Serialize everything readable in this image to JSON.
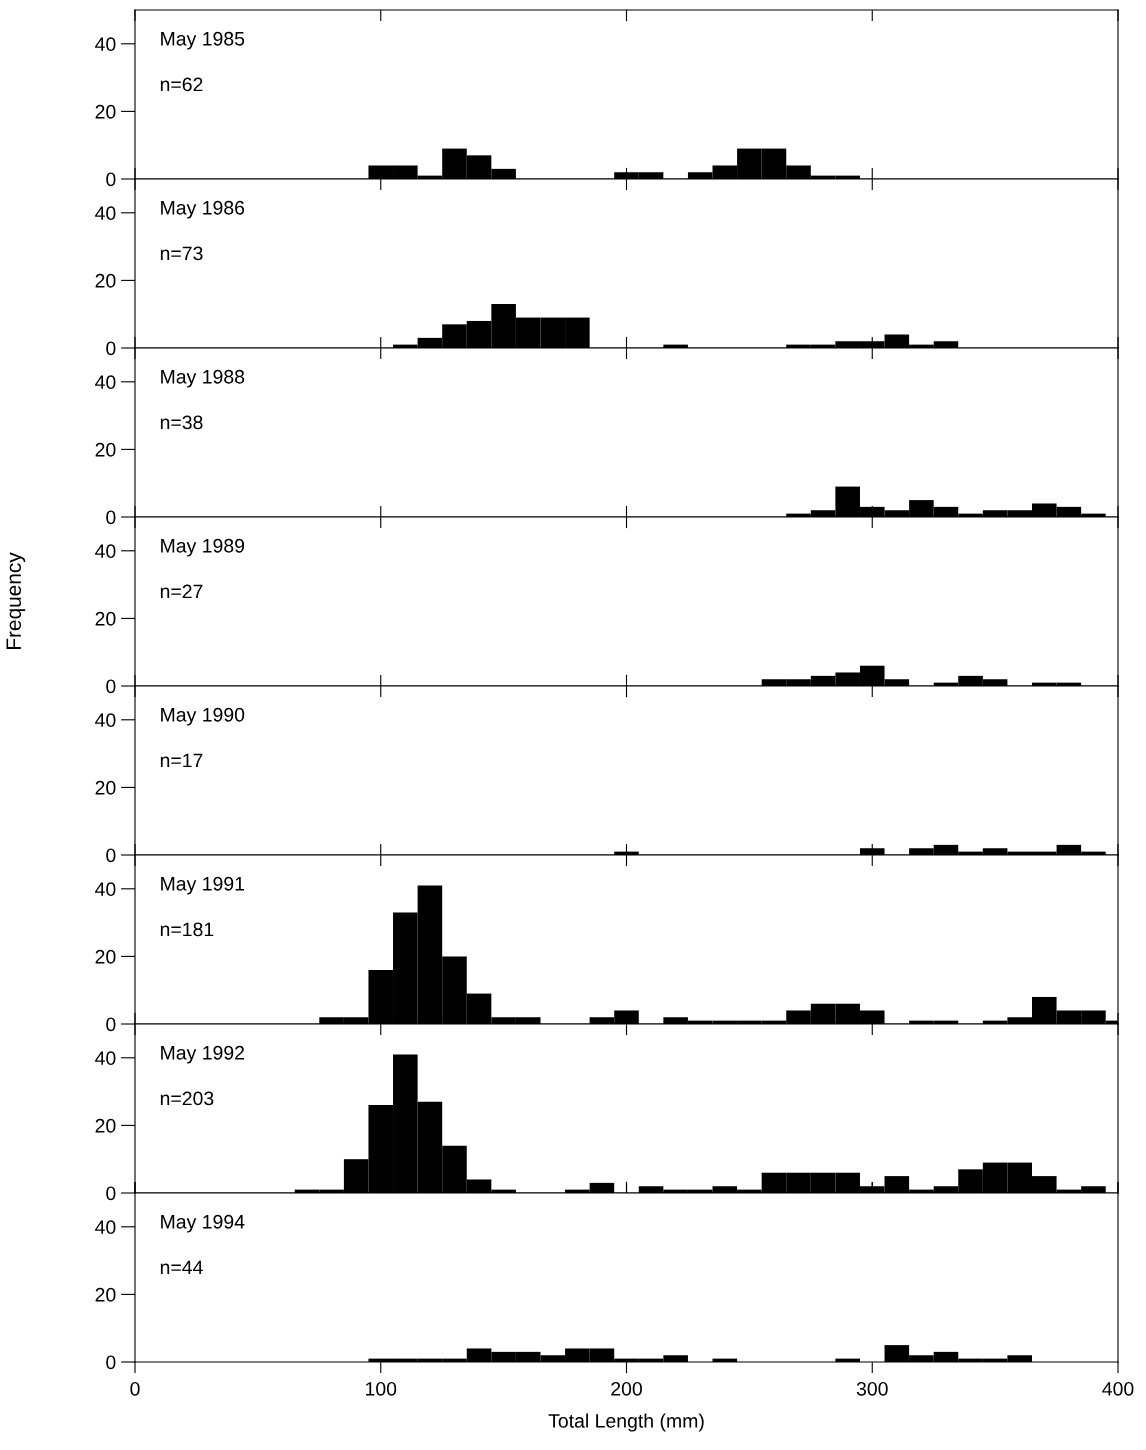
{
  "chart_data": [
    {
      "type": "bar",
      "annotations": [
        "May 1985",
        "n=62"
      ],
      "x": [
        100,
        110,
        120,
        130,
        140,
        150,
        200,
        210,
        230,
        240,
        250,
        260,
        270,
        280,
        290
      ],
      "values": [
        4,
        4,
        1,
        9,
        7,
        3,
        2,
        2,
        2,
        4,
        9,
        9,
        4,
        1,
        1
      ],
      "color": "#000000",
      "xlim": [
        0,
        400
      ],
      "xticks": [
        0,
        100,
        200,
        300,
        400
      ],
      "ylim": [
        0,
        50
      ],
      "yticks": [
        0,
        20,
        40
      ],
      "tick_labels": "y"
    },
    {
      "type": "bar",
      "annotations": [
        "May 1986",
        "n=73"
      ],
      "x": [
        110,
        120,
        130,
        140,
        150,
        160,
        170,
        180,
        220,
        270,
        280,
        290,
        300,
        310,
        320,
        330
      ],
      "values": [
        1,
        3,
        7,
        8,
        13,
        9,
        9,
        9,
        1,
        1,
        1,
        2,
        2,
        4,
        1,
        2
      ],
      "color": "#000000",
      "xlim": [
        0,
        400
      ],
      "xticks": [
        0,
        100,
        200,
        300,
        400
      ],
      "ylim": [
        0,
        50
      ],
      "yticks": [
        0,
        20,
        40
      ],
      "tick_labels": "y"
    },
    {
      "type": "bar",
      "annotations": [
        "May 1988",
        "n=38"
      ],
      "x": [
        270,
        280,
        290,
        300,
        310,
        320,
        330,
        340,
        350,
        360,
        370,
        380,
        390
      ],
      "values": [
        1,
        2,
        9,
        3,
        2,
        5,
        3,
        1,
        2,
        2,
        4,
        3,
        1
      ],
      "color": "#000000",
      "xlim": [
        0,
        400
      ],
      "xticks": [
        0,
        100,
        200,
        300,
        400
      ],
      "ylim": [
        0,
        50
      ],
      "yticks": [
        0,
        20,
        40
      ],
      "tick_labels": "y"
    },
    {
      "type": "bar",
      "annotations": [
        "May 1989",
        "n=27"
      ],
      "ylabel": "Frequency",
      "x": [
        260,
        270,
        280,
        290,
        300,
        310,
        330,
        340,
        350,
        370,
        380
      ],
      "values": [
        2,
        2,
        3,
        4,
        6,
        2,
        1,
        3,
        2,
        1,
        1
      ],
      "color": "#000000",
      "xlim": [
        0,
        400
      ],
      "xticks": [
        0,
        100,
        200,
        300,
        400
      ],
      "ylim": [
        0,
        50
      ],
      "yticks": [
        0,
        20,
        40
      ],
      "tick_labels": "y"
    },
    {
      "type": "bar",
      "annotations": [
        "May 1990",
        "n=17"
      ],
      "x": [
        200,
        300,
        320,
        330,
        340,
        350,
        360,
        370,
        380,
        390
      ],
      "values": [
        1,
        2,
        2,
        3,
        1,
        2,
        1,
        1,
        3,
        1
      ],
      "color": "#000000",
      "xlim": [
        0,
        400
      ],
      "xticks": [
        0,
        100,
        200,
        300,
        400
      ],
      "ylim": [
        0,
        50
      ],
      "yticks": [
        0,
        20,
        40
      ],
      "tick_labels": "y"
    },
    {
      "type": "bar",
      "annotations": [
        "May 1991",
        "n=181"
      ],
      "x": [
        80,
        90,
        100,
        110,
        120,
        130,
        140,
        150,
        160,
        190,
        200,
        220,
        230,
        240,
        250,
        260,
        270,
        280,
        290,
        300,
        320,
        330,
        350,
        360,
        370,
        380,
        390,
        400
      ],
      "values": [
        2,
        2,
        16,
        33,
        41,
        20,
        9,
        2,
        2,
        2,
        4,
        2,
        1,
        1,
        1,
        1,
        4,
        6,
        6,
        4,
        1,
        1,
        1,
        2,
        8,
        4,
        4,
        1
      ],
      "color": "#000000",
      "xlim": [
        0,
        400
      ],
      "xticks": [
        0,
        100,
        200,
        300,
        400
      ],
      "ylim": [
        0,
        50
      ],
      "yticks": [
        0,
        20,
        40
      ],
      "tick_labels": "y"
    },
    {
      "type": "bar",
      "annotations": [
        "May 1992",
        "n=203"
      ],
      "x": [
        70,
        80,
        90,
        100,
        110,
        120,
        130,
        140,
        150,
        180,
        190,
        210,
        220,
        230,
        240,
        250,
        260,
        270,
        280,
        290,
        300,
        310,
        320,
        330,
        340,
        350,
        360,
        370,
        380,
        390
      ],
      "values": [
        1,
        1,
        10,
        26,
        41,
        27,
        14,
        4,
        1,
        1,
        3,
        2,
        1,
        1,
        2,
        1,
        6,
        6,
        6,
        6,
        2,
        5,
        1,
        2,
        7,
        9,
        9,
        5,
        1,
        2
      ],
      "color": "#000000",
      "xlim": [
        0,
        400
      ],
      "xticks": [
        0,
        100,
        200,
        300,
        400
      ],
      "ylim": [
        0,
        50
      ],
      "yticks": [
        0,
        20,
        40
      ],
      "tick_labels": "y"
    },
    {
      "type": "bar",
      "annotations": [
        "May 1994",
        "n=44"
      ],
      "xlabel": "Total Length (mm)",
      "x": [
        100,
        110,
        120,
        130,
        140,
        150,
        160,
        170,
        180,
        190,
        200,
        210,
        220,
        240,
        290,
        310,
        320,
        330,
        340,
        350,
        360
      ],
      "values": [
        1,
        1,
        1,
        1,
        4,
        3,
        3,
        2,
        4,
        4,
        1,
        1,
        2,
        1,
        1,
        5,
        2,
        3,
        1,
        1,
        2
      ],
      "color": "#000000",
      "xlim": [
        0,
        400
      ],
      "xticks": [
        0,
        100,
        200,
        300,
        400
      ],
      "ylim": [
        0,
        50
      ],
      "yticks": [
        0,
        20,
        40
      ]
    }
  ]
}
